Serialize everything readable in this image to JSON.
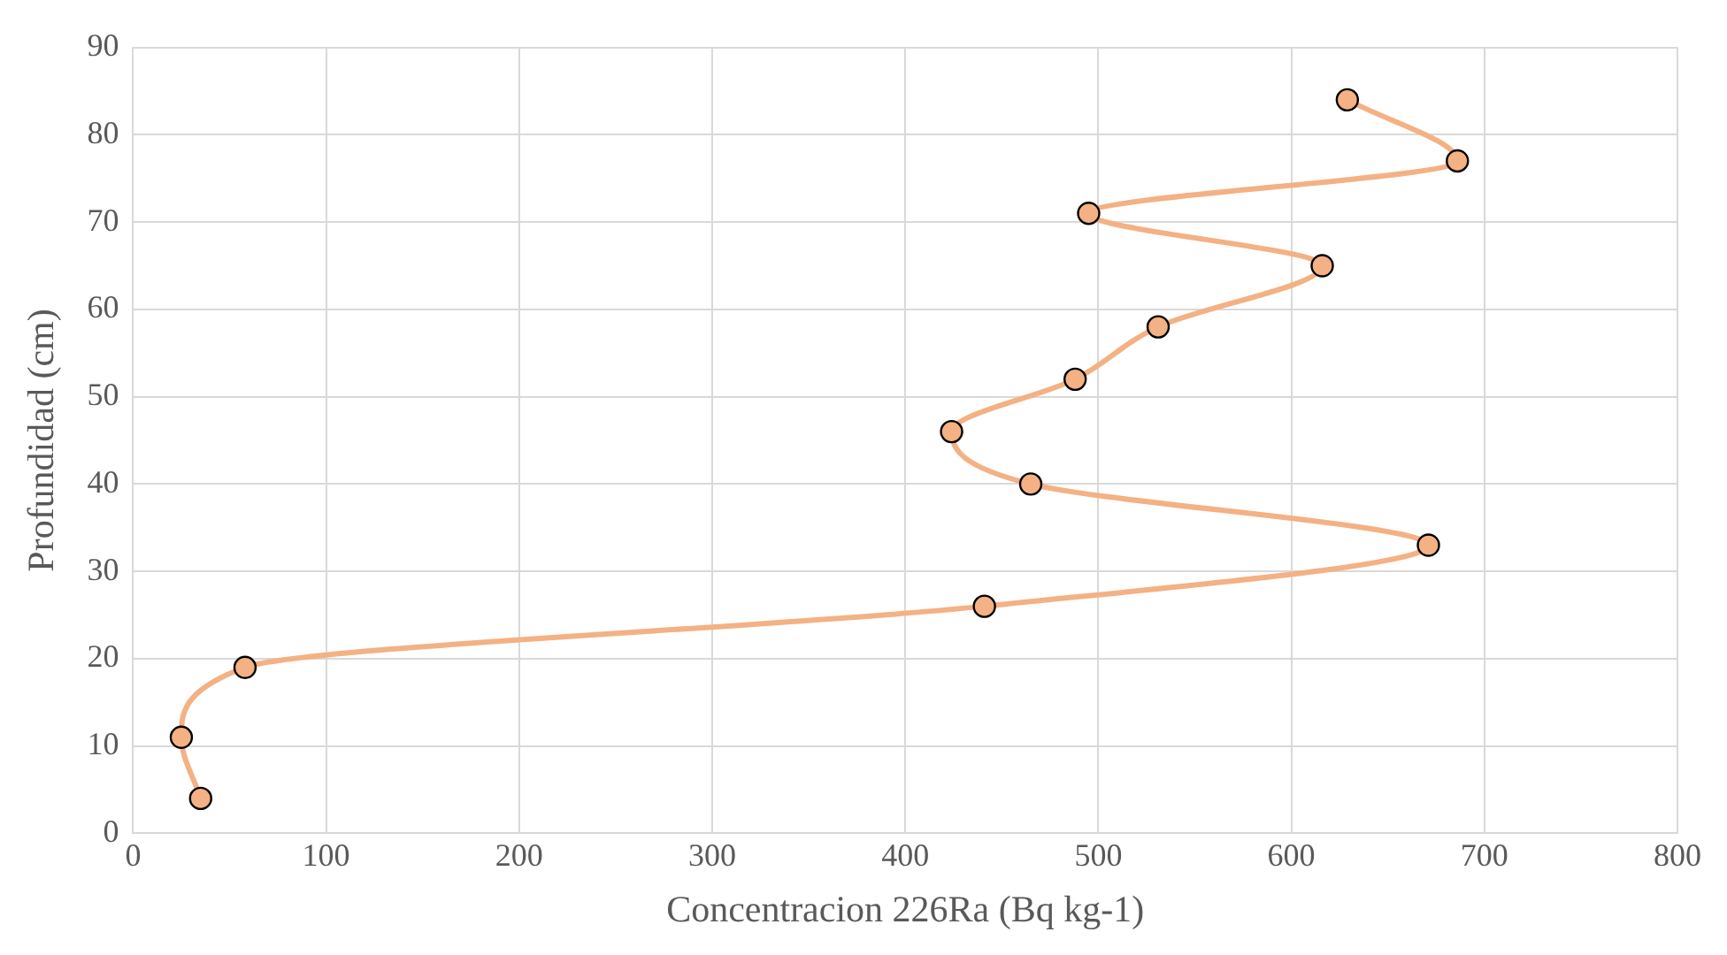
{
  "chart_data": {
    "type": "line",
    "xlabel": "Concentracion 226Ra (Bq kg-1)",
    "ylabel": "Profundidad (cm)",
    "x": [
      35,
      25,
      58,
      441,
      671,
      465,
      424,
      488,
      531,
      616,
      495,
      686,
      629
    ],
    "values": [
      4,
      11,
      19,
      26,
      33,
      40,
      46,
      52,
      58,
      65,
      71,
      77,
      84
    ],
    "color": "#f4b183",
    "marker": "circle",
    "line_style": "solid",
    "xlim": [
      0,
      800
    ],
    "xticks": [
      0,
      100,
      200,
      300,
      400,
      500,
      600,
      700,
      800
    ],
    "ylim": [
      0,
      90
    ],
    "yticks": [
      0,
      10,
      20,
      30,
      40,
      50,
      60,
      70,
      80,
      90
    ],
    "grid": true,
    "legend": false
  }
}
